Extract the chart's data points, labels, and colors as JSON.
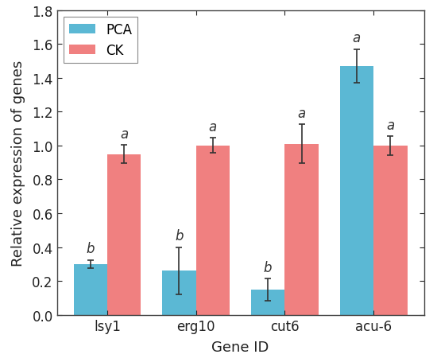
{
  "categories": [
    "lsy1",
    "erg10",
    "cut6",
    "acu-6"
  ],
  "pca_values": [
    0.3,
    0.26,
    0.15,
    1.47
  ],
  "ck_values": [
    0.95,
    1.0,
    1.01,
    1.0
  ],
  "pca_errors": [
    0.025,
    0.14,
    0.065,
    0.1
  ],
  "ck_errors": [
    0.055,
    0.045,
    0.115,
    0.055
  ],
  "pca_color": "#5BB8D4",
  "ck_color": "#F08080",
  "pca_label": "PCA",
  "ck_label": "CK",
  "xlabel": "Gene ID",
  "ylabel": "Relative expression of genes",
  "ylim": [
    0,
    1.8
  ],
  "yticks": [
    0.0,
    0.2,
    0.4,
    0.6,
    0.8,
    1.0,
    1.2,
    1.4,
    1.6,
    1.8
  ],
  "pca_letters": [
    "b",
    "b",
    "b",
    "a"
  ],
  "ck_letters": [
    "a",
    "a",
    "a",
    "a"
  ],
  "bar_width": 0.38,
  "label_fontsize": 13,
  "tick_fontsize": 12,
  "legend_fontsize": 12,
  "letter_fontsize": 12,
  "background_color": "#ffffff",
  "edgecolor": "#444444",
  "spine_color": "#444444"
}
